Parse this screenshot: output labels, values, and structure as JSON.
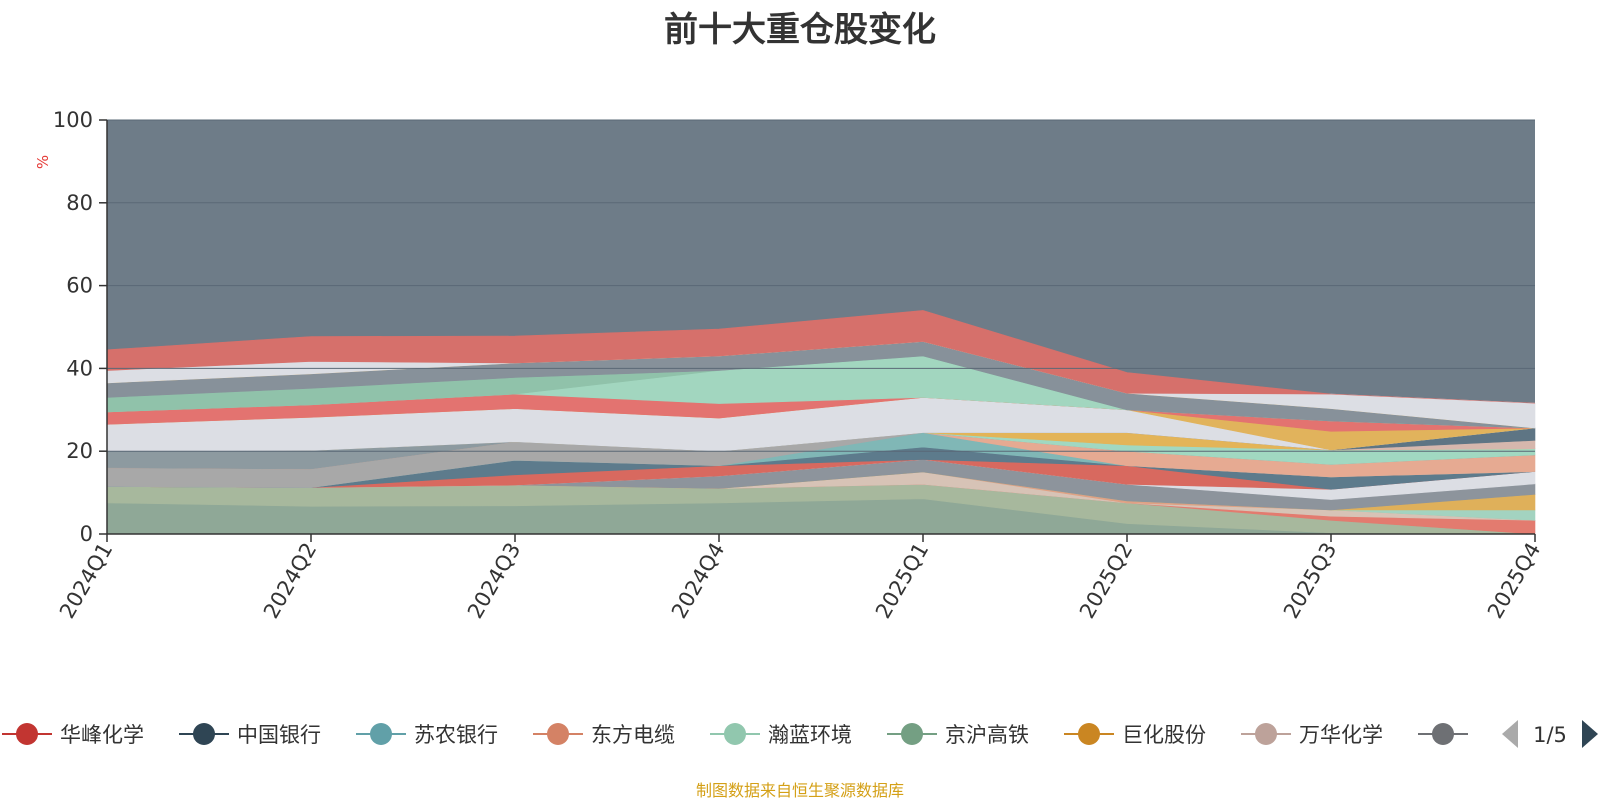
{
  "title": "前十大重仓股变化",
  "footer": "制图数据来自恒生聚源数据库",
  "pager": {
    "text": "1/5"
  },
  "colors": {
    "plot_bg": "#6e7c88",
    "grid": "#5a6876",
    "axis": "#333333",
    "unit": "#e53935"
  },
  "chart_data": {
    "type": "area",
    "stacked": true,
    "ylabel": "%",
    "ylim": [
      0,
      100
    ],
    "yticks": [
      0,
      20,
      40,
      60,
      80,
      100
    ],
    "categories": [
      "2024Q1",
      "2024Q2",
      "2024Q3",
      "2024Q4",
      "2025Q1",
      "2025Q2",
      "2025Q3",
      "2025Q4"
    ],
    "grid": true,
    "legend_position": "bottom",
    "layers": [
      {
        "color": "#8fa897",
        "values": [
          7.5,
          6.7,
          6.8,
          7.5,
          8.5,
          2.5,
          0.3,
          0.0
        ]
      },
      {
        "color": "#a7b89d",
        "values": [
          4.0,
          4.5,
          5.0,
          3.5,
          3.5,
          5.0,
          3.0,
          0.0
        ]
      },
      {
        "color": "#e37b6f",
        "values": [
          0.0,
          0.0,
          0.0,
          0.0,
          0.0,
          0.0,
          1.0,
          3.3
        ]
      },
      {
        "color": "#d7c3b6",
        "values": [
          0.0,
          0.0,
          0.0,
          0.0,
          3.0,
          0.0,
          1.5,
          0.0
        ]
      },
      {
        "color": "#e0a184",
        "values": [
          0.0,
          0.0,
          0.0,
          0.0,
          0.0,
          0.5,
          0.0,
          0.0
        ]
      },
      {
        "color": "#a3d3c0",
        "values": [
          0.0,
          0.0,
          0.0,
          0.0,
          0.0,
          0.0,
          0.0,
          2.5
        ]
      },
      {
        "color": "#dfb05a",
        "values": [
          0.0,
          0.0,
          0.0,
          0.0,
          0.0,
          0.0,
          0.0,
          3.8
        ]
      },
      {
        "color": "#8d949c",
        "values": [
          0.0,
          0.0,
          0.0,
          3.0,
          3.0,
          4.0,
          2.5,
          2.5
        ]
      },
      {
        "color": "#dcdee4",
        "values": [
          0.0,
          0.0,
          0.0,
          0.0,
          0.0,
          0.0,
          2.5,
          3.0
        ]
      },
      {
        "color": "#d8695f",
        "values": [
          0.0,
          0.0,
          2.5,
          2.5,
          0.0,
          4.5,
          0.0,
          0.0
        ]
      },
      {
        "color": "#5d7b8c",
        "values": [
          0.0,
          0.0,
          3.5,
          0.0,
          3.0,
          0.0,
          3.0,
          0.0
        ]
      },
      {
        "color": "#80b7b6",
        "values": [
          0.0,
          0.0,
          0.0,
          0.0,
          3.5,
          0.0,
          0.0,
          0.0
        ]
      },
      {
        "color": "#a8a8a8",
        "values": [
          4.5,
          4.5,
          4.5,
          3.5,
          0.0,
          0.0,
          0.0,
          0.0
        ]
      },
      {
        "color": "#e6aa92",
        "values": [
          0.0,
          0.0,
          0.0,
          0.0,
          0.0,
          3.5,
          3.0,
          4.0
        ]
      },
      {
        "color": "#8d9aa0",
        "values": [
          4.0,
          4.5,
          0.0,
          0.0,
          0.0,
          0.0,
          0.0,
          0.0
        ]
      },
      {
        "color": "#a1d8c1",
        "values": [
          0.0,
          0.0,
          0.0,
          0.0,
          0.0,
          1.5,
          3.5,
          1.5
        ]
      },
      {
        "color": "#e3b458",
        "values": [
          0.0,
          0.0,
          0.0,
          0.0,
          0.0,
          3.0,
          0.0,
          0.0
        ]
      },
      {
        "color": "#d6b7ad",
        "values": [
          0.0,
          0.0,
          0.0,
          0.0,
          0.0,
          0.0,
          0.0,
          2.0
        ]
      },
      {
        "color": "#5e7584",
        "values": [
          0.0,
          0.0,
          0.0,
          0.0,
          0.0,
          0.0,
          0.0,
          3.0
        ]
      },
      {
        "color": "#dcdee4",
        "values": [
          6.5,
          8.0,
          8.0,
          8.0,
          8.5,
          5.5,
          0.0,
          0.0
        ]
      },
      {
        "color": "#e1b35c",
        "values": [
          0.0,
          0.0,
          0.0,
          0.0,
          0.0,
          0.0,
          4.5,
          0.0
        ]
      },
      {
        "color": "#e37370",
        "values": [
          3.0,
          3.0,
          3.5,
          3.5,
          0.0,
          0.0,
          2.5,
          0.0
        ]
      },
      {
        "color": "#a2d6bf",
        "values": [
          0.0,
          0.0,
          0.0,
          8.0,
          10.0,
          0.0,
          0.0,
          0.0
        ]
      },
      {
        "color": "#90c2aa",
        "values": [
          3.5,
          4.0,
          4.0,
          0.0,
          0.0,
          0.0,
          0.0,
          0.0
        ]
      },
      {
        "color": "#87919a",
        "values": [
          3.5,
          3.5,
          3.5,
          3.5,
          3.5,
          4.0,
          3.0,
          0.0
        ]
      },
      {
        "color": "#dfb05a",
        "values": [
          0.0,
          0.0,
          0.0,
          0.0,
          0.0,
          0.0,
          0.0,
          0.0
        ]
      },
      {
        "color": "#dcdee4",
        "values": [
          3.0,
          3.0,
          0.0,
          0.0,
          0.0,
          0.0,
          3.5,
          6.0
        ]
      },
      {
        "color": "#d6706b",
        "values": [
          5.0,
          6.0,
          6.5,
          6.5,
          7.5,
          5.0,
          0.0,
          0.0
        ]
      }
    ],
    "legend": [
      {
        "name": "华峰化学",
        "color": "#c23531"
      },
      {
        "name": "中国银行",
        "color": "#2f4554"
      },
      {
        "name": "苏农银行",
        "color": "#61a0a8"
      },
      {
        "name": "东方电缆",
        "color": "#d48265"
      },
      {
        "name": "瀚蓝环境",
        "color": "#91c7ae"
      },
      {
        "name": "京沪高铁",
        "color": "#749f83"
      },
      {
        "name": "巨化股份",
        "color": "#ca8622"
      },
      {
        "name": "万华化学",
        "color": "#bda29a"
      },
      {
        "name": "",
        "color": "#6e7074"
      }
    ]
  }
}
